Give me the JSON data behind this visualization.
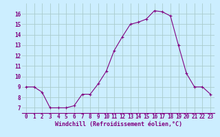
{
  "x": [
    0,
    1,
    2,
    3,
    4,
    5,
    6,
    7,
    8,
    9,
    10,
    11,
    12,
    13,
    14,
    15,
    16,
    17,
    18,
    19,
    20,
    21,
    22,
    23
  ],
  "y": [
    9,
    9,
    8.5,
    7,
    7,
    7,
    7.2,
    8.3,
    8.3,
    9.3,
    10.5,
    12.5,
    13.8,
    15,
    15.2,
    15.5,
    16.3,
    16.2,
    15.8,
    13,
    10.3,
    9,
    9,
    8.3
  ],
  "line_color": "#800080",
  "marker": "+",
  "bg_color": "#cceeff",
  "grid_color": "#aacccc",
  "xlabel": "Windchill (Refroidissement éolien,°C)",
  "yticks": [
    7,
    8,
    9,
    10,
    11,
    12,
    13,
    14,
    15,
    16
  ],
  "xticks": [
    0,
    1,
    2,
    3,
    4,
    5,
    6,
    7,
    8,
    9,
    10,
    11,
    12,
    13,
    14,
    15,
    16,
    17,
    18,
    19,
    20,
    21,
    22,
    23
  ],
  "ylim": [
    6.5,
    17.0
  ],
  "xlim": [
    -0.5,
    23.5
  ],
  "label_color": "#800080",
  "tick_color": "#800080",
  "tick_fontsize": 5.5,
  "xlabel_fontsize": 6.0,
  "linewidth": 0.8,
  "markersize": 3.0,
  "markeredgewidth": 0.8
}
